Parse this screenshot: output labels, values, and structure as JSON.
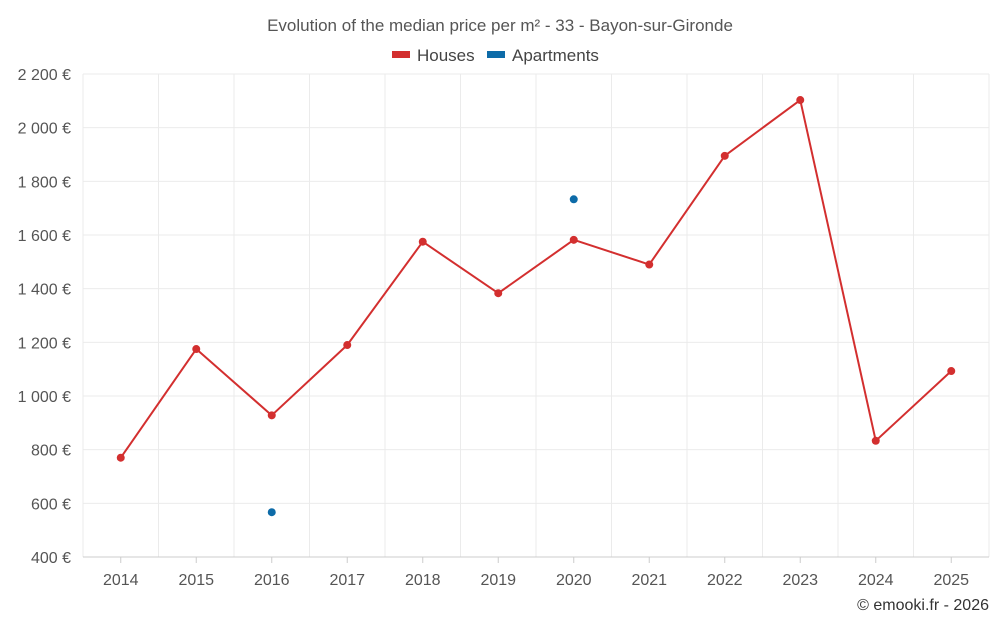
{
  "chart_data": {
    "type": "line",
    "title": "Evolution of the median price per m² - 33 - Bayon-sur-Gironde",
    "categories": [
      "2014",
      "2015",
      "2016",
      "2017",
      "2018",
      "2019",
      "2020",
      "2021",
      "2022",
      "2023",
      "2024",
      "2025"
    ],
    "y_tick_labels": [
      "400 €",
      "600 €",
      "800 €",
      "1 000 €",
      "1 200 €",
      "1 400 €",
      "1 600 €",
      "1 800 €",
      "2 000 €",
      "2 200 €"
    ],
    "y_ticks": [
      400,
      600,
      800,
      1000,
      1200,
      1400,
      1600,
      1800,
      2000,
      2200
    ],
    "ylim": [
      400,
      2200
    ],
    "grid": true,
    "legend_position": "top-center",
    "series": [
      {
        "name": "Houses",
        "color": "#d32f2f",
        "values": [
          770,
          1175,
          928,
          1190,
          1575,
          1383,
          1582,
          1490,
          1895,
          2103,
          833,
          1093
        ],
        "line": true
      },
      {
        "name": "Apartments",
        "color": "#0d6ba8",
        "values": [
          null,
          null,
          567,
          null,
          null,
          null,
          1733,
          null,
          null,
          null,
          null,
          null
        ],
        "line": false
      }
    ],
    "credit": "© emooki.fr - 2026"
  }
}
